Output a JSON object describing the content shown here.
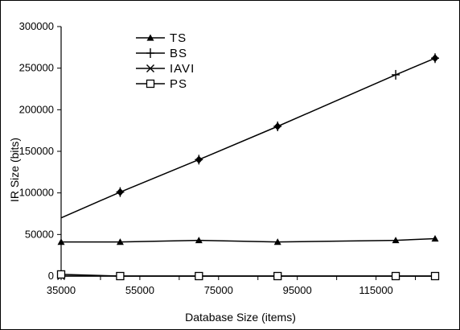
{
  "chart_data": {
    "type": "line",
    "xlabel": "Database Size (items)",
    "ylabel": "IR Size (bits)",
    "xlim": [
      35000,
      130000
    ],
    "ylim": [
      0,
      300000
    ],
    "x_ticks": [
      35000,
      55000,
      75000,
      95000,
      115000
    ],
    "y_ticks": [
      0,
      50000,
      100000,
      150000,
      200000,
      250000,
      300000
    ],
    "x_tick_labels": [
      "35000",
      "55000",
      "75000",
      "95000",
      "115000"
    ],
    "y_tick_labels": [
      "0",
      "50000",
      "100000",
      "150000",
      "200000",
      "250000",
      "300000"
    ],
    "x": [
      35000,
      50000,
      70000,
      90000,
      120000,
      130000
    ],
    "series": [
      {
        "name": "TS",
        "marker": "triangle",
        "values": [
          41000,
          41000,
          43000,
          41000,
          43000,
          45000
        ]
      },
      {
        "name": "BS",
        "marker": "plus",
        "values": [
          70000,
          101000,
          140000,
          180000,
          242000,
          262000
        ]
      },
      {
        "name": "IAVI",
        "marker": "x",
        "values": [
          0,
          0,
          0,
          0,
          0,
          0
        ]
      },
      {
        "name": "PS",
        "marker": "square",
        "values": [
          2000,
          0,
          0,
          0,
          0,
          0
        ]
      }
    ],
    "extra_markers": [
      {
        "series": "BS",
        "marker": "diamond",
        "x": [
          50000,
          70000,
          90000,
          130000
        ]
      }
    ],
    "grid": false,
    "legend": "top-left",
    "color": "#000000"
  }
}
